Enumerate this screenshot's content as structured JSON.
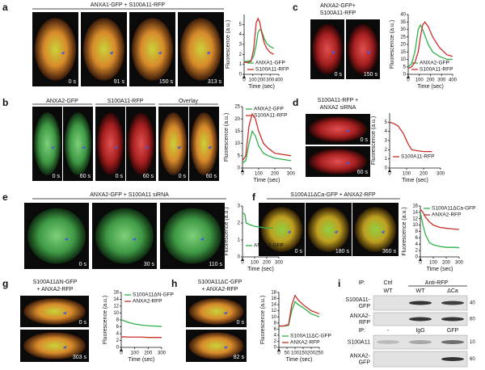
{
  "panels": [
    {
      "label": "a",
      "title": [
        "ANXA1-GFP + S100A11-RFP"
      ],
      "images": [
        "0 s",
        "91 s",
        "150 s",
        "313 s"
      ]
    },
    {
      "label": "b",
      "headers": [
        "ANXA2-GFP",
        "S100A11-RFP",
        "Overlay"
      ],
      "images": [
        "0 s",
        "60 s",
        "0 s",
        "60 s",
        "0 s",
        "60 s"
      ]
    },
    {
      "label": "c",
      "title": [
        "ANXA2-GFP+",
        "S100A11-RFP"
      ],
      "images": [
        "0 s",
        "150 s"
      ]
    },
    {
      "label": "d",
      "title": [
        "S100A11-RFP +",
        "ANXA2 siRNA"
      ],
      "images": [
        "0 s",
        "60 s"
      ]
    },
    {
      "label": "e",
      "title": [
        "ANXA2-GFP + S100A11 siRNA"
      ],
      "images": [
        "0 s",
        "30 s",
        "110 s"
      ]
    },
    {
      "label": "f",
      "title": [
        "S100A11ΔCa-GFP + ANXA2-RFP"
      ],
      "images": [
        "0 s",
        "180 s",
        "360 s"
      ]
    },
    {
      "label": "g",
      "title": [
        "S100A11ΔN-GFP",
        "+ ANXA2-RFP"
      ],
      "images": [
        "0 s",
        "303 s"
      ]
    },
    {
      "label": "h",
      "title": [
        "S100A11ΔC-GFP",
        "+ ANXA2-RFP"
      ],
      "images": [
        "0 s",
        "82 s"
      ]
    }
  ],
  "chart_data": [
    {
      "type": "line",
      "xlabel": "Time (sec)",
      "ylabel": "Fluorescence (a.u.)",
      "xlim": [
        0,
        400
      ],
      "xticks": [
        0,
        100,
        200,
        300,
        400
      ],
      "ylim": [
        0,
        6
      ],
      "yticks": [
        0,
        1,
        2,
        3,
        4,
        5
      ],
      "x": [
        0,
        40,
        80,
        110,
        140,
        160,
        180,
        200,
        230,
        260,
        300,
        340
      ],
      "series": [
        {
          "name": "ANXA1-GFP",
          "color": "#2fb04a",
          "values": [
            1.3,
            1.3,
            1.4,
            1.8,
            3.0,
            4.2,
            4.5,
            4.4,
            3.6,
            3.1,
            2.8,
            2.6
          ]
        },
        {
          "name": "S100A11-RFP",
          "color": "#c8302a",
          "values": [
            1.2,
            1.2,
            1.3,
            2.5,
            5.2,
            5.6,
            5.2,
            4.3,
            3.2,
            2.6,
            2.2,
            2.0
          ]
        }
      ]
    },
    {
      "type": "line",
      "xlabel": "Time (sec)",
      "ylabel": "Fluorescence (a.u.)",
      "xlim": [
        0,
        300
      ],
      "xticks": [
        0,
        100,
        200,
        300
      ],
      "ylim": [
        0,
        25
      ],
      "yticks": [
        0,
        5,
        10,
        15,
        20,
        25
      ],
      "x": [
        0,
        20,
        40,
        60,
        80,
        100,
        130,
        160,
        200,
        250,
        300
      ],
      "series": [
        {
          "name": "ANXA2-GFP",
          "color": "#2fb04a",
          "values": [
            2,
            3,
            10,
            15,
            13,
            9,
            6,
            5,
            4,
            3.5,
            3
          ]
        },
        {
          "name": "S100A11-RFP",
          "color": "#c8302a",
          "values": [
            3,
            5,
            17,
            22,
            20,
            15,
            10,
            8,
            6,
            5.5,
            5
          ]
        }
      ]
    },
    {
      "type": "line",
      "xlabel": "Time (sec)",
      "ylabel": "Fluorescence (a.u.)",
      "xlim": [
        0,
        400
      ],
      "xticks": [
        0,
        100,
        200,
        300,
        400
      ],
      "ylim": [
        0,
        40
      ],
      "yticks": [
        0,
        5,
        10,
        15,
        20,
        25,
        30,
        35,
        40
      ],
      "x": [
        0,
        30,
        60,
        90,
        110,
        130,
        150,
        180,
        220,
        280,
        350,
        400
      ],
      "series": [
        {
          "name": "ANXA2-GFP",
          "color": "#2fb04a",
          "values": [
            5,
            7,
            15,
            30,
            33,
            30,
            26,
            20,
            15,
            12,
            10,
            10
          ]
        },
        {
          "name": "S100A11-RFP",
          "color": "#c8302a",
          "values": [
            4,
            5,
            8,
            15,
            25,
            33,
            35,
            32,
            25,
            18,
            13,
            12
          ]
        }
      ]
    },
    {
      "type": "line",
      "xlabel": "Time (sec)",
      "ylabel": "Fluorescence (a.u.)",
      "xlim": [
        0,
        300
      ],
      "xticks": [
        0,
        100,
        200,
        300
      ],
      "ylim": [
        0,
        6
      ],
      "yticks": [
        0,
        1,
        2,
        3,
        4,
        5
      ],
      "x": [
        0,
        20,
        50,
        80,
        110,
        130,
        160,
        200,
        250
      ],
      "series": [
        {
          "name": "S100A11-RFP",
          "color": "#c8302a",
          "values": [
            5,
            4.9,
            4.6,
            3.8,
            2.6,
            2.0,
            1.9,
            1.8,
            1.8
          ]
        }
      ]
    },
    {
      "type": "line",
      "xlabel": "Time (sec)",
      "ylabel": "Fluorescence (a.u.)",
      "xlim": [
        0,
        300
      ],
      "xticks": [
        0,
        100,
        200,
        300
      ],
      "ylim": [
        0,
        3
      ],
      "yticks": [
        0,
        1,
        2,
        3
      ],
      "x": [
        0,
        20,
        30,
        60,
        100,
        150,
        200,
        250
      ],
      "series": [
        {
          "name": "ANXA2-GFP",
          "color": "#2fb04a",
          "values": [
            2.6,
            2.5,
            2.0,
            1.9,
            1.8,
            1.75,
            1.7,
            1.7
          ]
        }
      ]
    },
    {
      "type": "line",
      "xlabel": "Time (sec)",
      "ylabel": "Fluorescence (a.u.)",
      "xlim": [
        0,
        300
      ],
      "xticks": [
        0,
        100,
        200,
        300
      ],
      "ylim": [
        0,
        16
      ],
      "yticks": [
        0,
        2,
        4,
        6,
        8,
        10,
        12,
        14,
        16
      ],
      "x": [
        0,
        20,
        40,
        70,
        100,
        150,
        200,
        250,
        300
      ],
      "series": [
        {
          "name": "S100A11ΔCa-GFP",
          "color": "#2fb04a",
          "values": [
            14,
            10,
            7,
            4.5,
            3.8,
            3.3,
            3.0,
            3.0,
            2.9
          ]
        },
        {
          "name": "ANXA2-RFP",
          "color": "#c8302a",
          "values": [
            15,
            14,
            12.5,
            11,
            10,
            9.3,
            9,
            8.8,
            8.6
          ]
        }
      ]
    },
    {
      "type": "line",
      "xlabel": "Time (sec)",
      "ylabel": "Fluorescence (a.u.)",
      "xlim": [
        0,
        300
      ],
      "xticks": [
        0,
        100,
        200,
        300
      ],
      "ylim": [
        0,
        16
      ],
      "yticks": [
        0,
        2,
        4,
        6,
        8,
        10,
        12,
        14,
        16
      ],
      "x": [
        0,
        20,
        50,
        100,
        150,
        200,
        250,
        300
      ],
      "series": [
        {
          "name": "S100A11ΔN-GFP",
          "color": "#2fb04a",
          "values": [
            8,
            7.8,
            7.3,
            6.8,
            6.5,
            6.3,
            6.2,
            6.1
          ]
        },
        {
          "name": "ANXA2-RFP",
          "color": "#c8302a",
          "values": [
            3,
            3.1,
            3.0,
            3.0,
            3.0,
            2.9,
            2.9,
            2.9
          ]
        }
      ]
    },
    {
      "type": "line",
      "xlabel": "Time (sec)",
      "ylabel": "Fluorescence (a.u.)",
      "xlim": [
        0,
        250
      ],
      "xticks": [
        0,
        50,
        100,
        150,
        200,
        250
      ],
      "ylim": [
        0,
        18
      ],
      "yticks": [
        0,
        2,
        4,
        6,
        8,
        10,
        12,
        14,
        16,
        18
      ],
      "x": [
        0,
        30,
        60,
        80,
        100,
        120,
        150,
        200,
        250
      ],
      "series": [
        {
          "name": "S100A11ΔC-GFP",
          "color": "#2fb04a",
          "values": [
            7,
            7,
            7.2,
            12,
            15,
            14,
            13,
            11,
            10
          ]
        },
        {
          "name": "ANXA2-RFP",
          "color": "#c8302a",
          "values": [
            7,
            7,
            7.5,
            14,
            17,
            15.5,
            14,
            12,
            11
          ]
        }
      ]
    }
  ],
  "blot": {
    "label": "i",
    "top": {
      "ip": "IP:",
      "groups": [
        "Ctrl",
        "Anti-RFP"
      ],
      "lanes": [
        "WT",
        "WT",
        "ΔCa"
      ],
      "rows": [
        [
          "S100A11-",
          "GFP"
        ],
        [
          "ANXA2-",
          "RFP"
        ]
      ],
      "markers": [
        40,
        60
      ]
    },
    "bottom": {
      "ip": "IP:",
      "lanes": [
        "-",
        "IgG",
        "GFP"
      ],
      "rows": [
        [
          "S100A11"
        ],
        [
          "ANXA2-",
          "GFP"
        ]
      ],
      "markers": [
        10,
        60
      ]
    }
  }
}
